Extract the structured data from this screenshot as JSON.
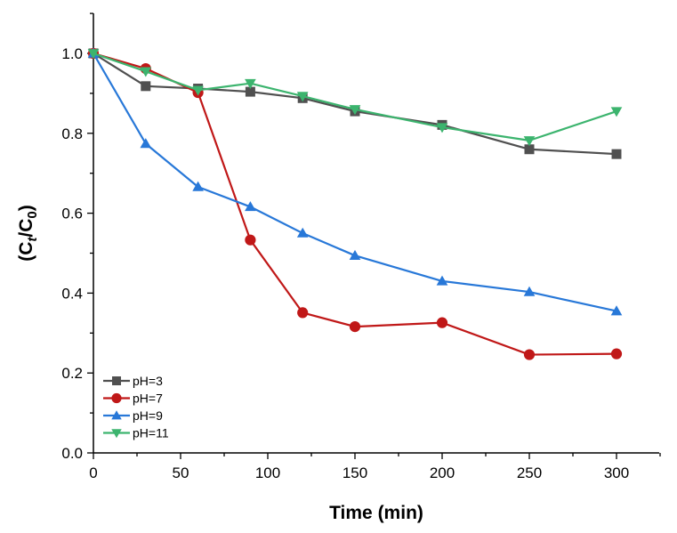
{
  "chart_data": {
    "type": "line",
    "xlabel": "Time (min)",
    "ylabel": {
      "prefix": "(C",
      "sub1": "t",
      "mid": "/C",
      "sub2": "0",
      "suffix": ")"
    },
    "xlim": [
      0,
      325
    ],
    "ylim": [
      0,
      1.1
    ],
    "xticks": [
      "0",
      "50",
      "100",
      "150",
      "200",
      "250",
      "300"
    ],
    "yticks": [
      "0.0",
      "0.2",
      "0.4",
      "0.6",
      "0.8",
      "1.0"
    ],
    "grid": false,
    "legend_position": "bottom-left",
    "series": [
      {
        "name": "pH=3",
        "color": "#505050",
        "marker": "square",
        "x": [
          0,
          30,
          60,
          90,
          120,
          150,
          200,
          250,
          300
        ],
        "y": [
          1.0,
          0.918,
          0.912,
          0.904,
          0.888,
          0.855,
          0.821,
          0.76,
          0.748
        ]
      },
      {
        "name": "pH=7",
        "color": "#c01818",
        "marker": "circle",
        "x": [
          0,
          30,
          60,
          90,
          120,
          150,
          200,
          250,
          300
        ],
        "y": [
          1.0,
          0.962,
          0.902,
          0.533,
          0.351,
          0.316,
          0.326,
          0.246,
          0.248
        ]
      },
      {
        "name": "pH=9",
        "color": "#2878d8",
        "marker": "triangle-up",
        "x": [
          0,
          30,
          60,
          90,
          120,
          150,
          200,
          250,
          300
        ],
        "y": [
          1.0,
          0.774,
          0.666,
          0.616,
          0.55,
          0.494,
          0.43,
          0.403,
          0.355
        ]
      },
      {
        "name": "pH=11",
        "color": "#3cb46e",
        "marker": "triangle-down",
        "x": [
          0,
          30,
          60,
          90,
          120,
          150,
          200,
          250,
          300
        ],
        "y": [
          1.0,
          0.955,
          0.908,
          0.925,
          0.893,
          0.86,
          0.815,
          0.782,
          0.855
        ]
      }
    ]
  }
}
